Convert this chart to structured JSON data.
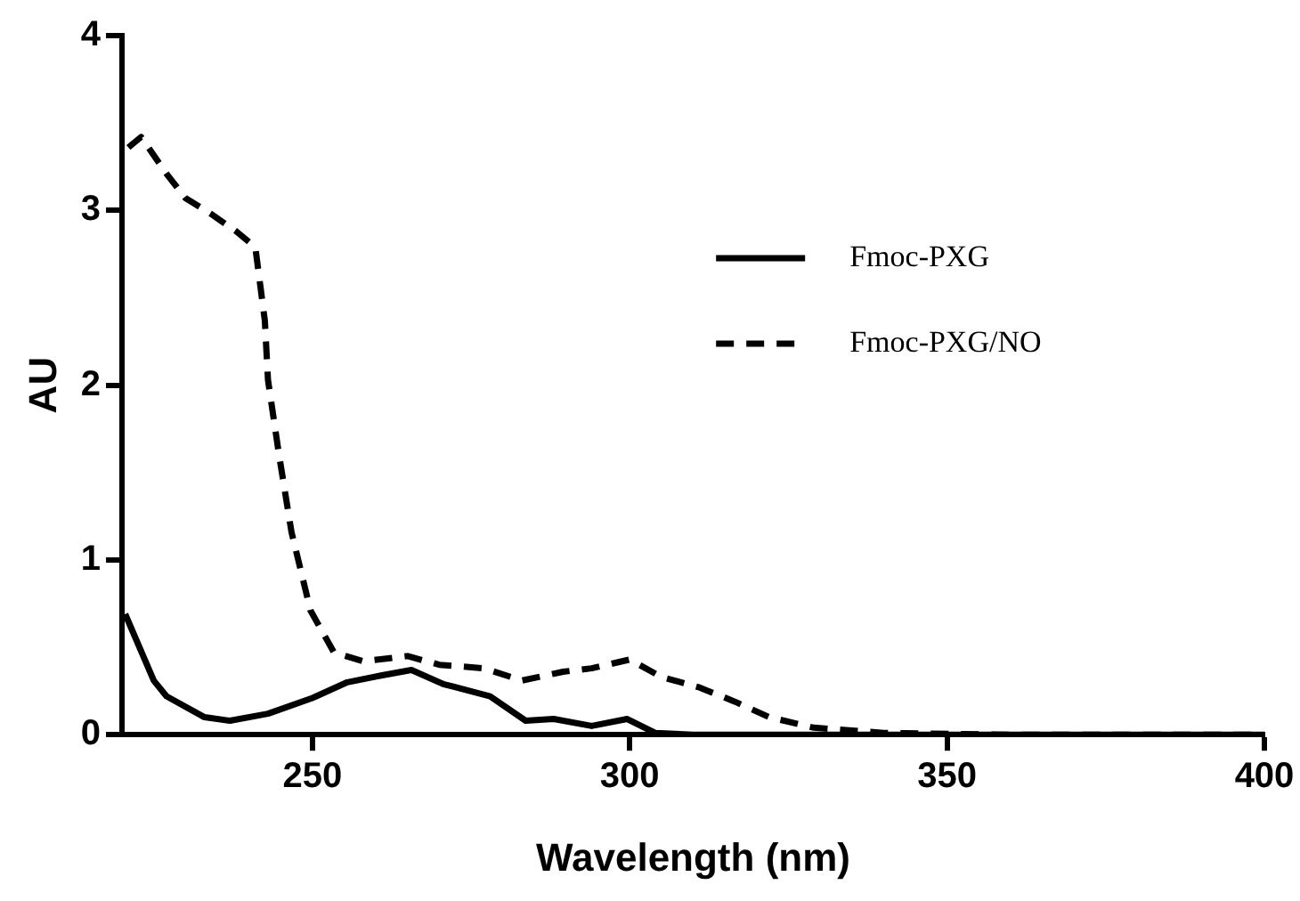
{
  "chart_data": {
    "type": "line",
    "xlabel": "Wavelength (nm)",
    "ylabel": "AU",
    "xlim": [
      220,
      400
    ],
    "xticks": [
      250,
      300,
      350,
      400
    ],
    "ylim": [
      0,
      4
    ],
    "yticks": [
      0,
      1,
      2,
      3,
      4
    ],
    "grid": false,
    "legend": "top right",
    "marker": "none",
    "series": [
      {
        "name": "Fmoc-PXG",
        "color": "#000000",
        "line_style": "solid",
        "x": [
          220.5,
          225,
          227,
          233,
          237,
          243,
          250,
          255.5,
          261,
          265.6,
          270.6,
          278,
          283.6,
          288,
          294,
          299.6,
          304,
          310,
          330,
          360,
          400
        ],
        "values": [
          0.69,
          0.31,
          0.22,
          0.1,
          0.08,
          0.12,
          0.21,
          0.3,
          0.34,
          0.37,
          0.29,
          0.22,
          0.08,
          0.09,
          0.05,
          0.09,
          0.01,
          0,
          0,
          0,
          0
        ]
      },
      {
        "name": "Fmoc-PXG/NO",
        "color": "#000000",
        "line_style": "dashed",
        "x": [
          221,
          223,
          227,
          230,
          234,
          238,
          241,
          242.5,
          243,
          244.7,
          246.7,
          249.7,
          253.4,
          258,
          265,
          270,
          277,
          283,
          289.5,
          294,
          300,
          305,
          311,
          316.5,
          322,
          329,
          340,
          360,
          400
        ],
        "values": [
          3.36,
          3.42,
          3.21,
          3.07,
          2.98,
          2.88,
          2.79,
          2.37,
          2.03,
          1.61,
          1.16,
          0.71,
          0.47,
          0.42,
          0.45,
          0.4,
          0.38,
          0.31,
          0.36,
          0.38,
          0.43,
          0.33,
          0.27,
          0.19,
          0.1,
          0.04,
          0.01,
          0,
          0
        ]
      }
    ]
  }
}
